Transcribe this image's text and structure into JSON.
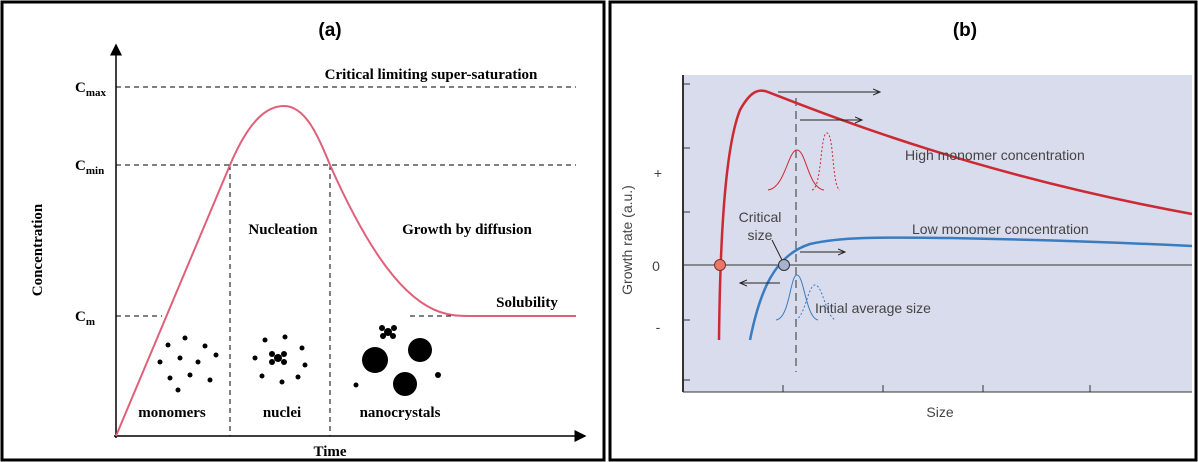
{
  "panel_a": {
    "label": "(a)",
    "supersaturation": "Critical limiting super-saturation",
    "c_max": {
      "symbol": "C",
      "subscript": "max"
    },
    "c_min": {
      "symbol": "C",
      "subscript": "min"
    },
    "c_m": {
      "symbol": "C",
      "subscript": "m"
    },
    "y_axis": "Concentration",
    "x_axis": "Time",
    "nucleation": "Nucleation",
    "growth": "Growth by diffusion",
    "solubility": "Solubility",
    "stages": [
      "monomers",
      "nuclei",
      "nanocrystals"
    ]
  },
  "panel_b": {
    "label": "(b)",
    "high": "High monomer concentration",
    "low": "Low monomer concentration",
    "critical_size": [
      "Critical",
      "size"
    ],
    "initial_size": "Initial average size",
    "y_axis": "Growth rate (a.u.)",
    "x_axis": "Size",
    "y_marks": [
      "+",
      "0",
      "-"
    ]
  }
}
